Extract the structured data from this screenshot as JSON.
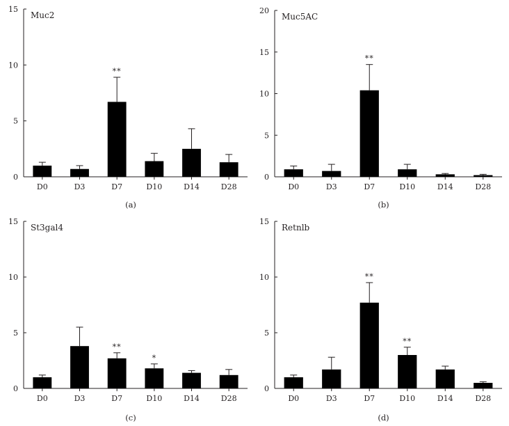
{
  "chart_data": [
    {
      "type": "bar",
      "title": "Muc2",
      "caption": "(a)",
      "categories": [
        "D0",
        "D3",
        "D7",
        "D10",
        "D14",
        "D28"
      ],
      "values": [
        1.0,
        0.7,
        6.7,
        1.4,
        2.5,
        1.3
      ],
      "errors": [
        0.3,
        0.3,
        2.2,
        0.7,
        1.8,
        0.7
      ],
      "significance": [
        "",
        "",
        "**",
        "",
        "",
        ""
      ],
      "ylim": [
        0,
        15
      ],
      "yticks": [
        0,
        5,
        10,
        15
      ],
      "xlabel": "",
      "ylabel": ""
    },
    {
      "type": "bar",
      "title": "Muc5AC",
      "caption": "(b)",
      "categories": [
        "D0",
        "D3",
        "D7",
        "D10",
        "D14",
        "D28"
      ],
      "values": [
        0.9,
        0.7,
        10.4,
        0.9,
        0.3,
        0.2
      ],
      "errors": [
        0.4,
        0.8,
        3.1,
        0.6,
        0.1,
        0.1
      ],
      "significance": [
        "",
        "",
        "**",
        "",
        "",
        ""
      ],
      "ylim": [
        0,
        20
      ],
      "yticks": [
        0,
        5,
        10,
        15,
        20
      ],
      "xlabel": "",
      "ylabel": ""
    },
    {
      "type": "bar",
      "title": "St3gal4",
      "caption": "(c)",
      "categories": [
        "D0",
        "D3",
        "D7",
        "D10",
        "D14",
        "D28"
      ],
      "values": [
        1.0,
        3.8,
        2.7,
        1.8,
        1.4,
        1.2
      ],
      "errors": [
        0.2,
        1.7,
        0.5,
        0.4,
        0.2,
        0.5
      ],
      "significance": [
        "",
        "",
        "**",
        "*",
        "",
        ""
      ],
      "ylim": [
        0,
        15
      ],
      "yticks": [
        0,
        5,
        10,
        15
      ],
      "xlabel": "",
      "ylabel": ""
    },
    {
      "type": "bar",
      "title": "Retnlb",
      "caption": "(d)",
      "categories": [
        "D0",
        "D3",
        "D7",
        "D10",
        "D14",
        "D28"
      ],
      "values": [
        1.0,
        1.7,
        7.7,
        3.0,
        1.7,
        0.5
      ],
      "errors": [
        0.2,
        1.1,
        1.8,
        0.7,
        0.3,
        0.1
      ],
      "significance": [
        "",
        "",
        "**",
        "**",
        "",
        ""
      ],
      "ylim": [
        0,
        15
      ],
      "yticks": [
        0,
        5,
        10,
        15
      ],
      "xlabel": "",
      "ylabel": ""
    }
  ]
}
